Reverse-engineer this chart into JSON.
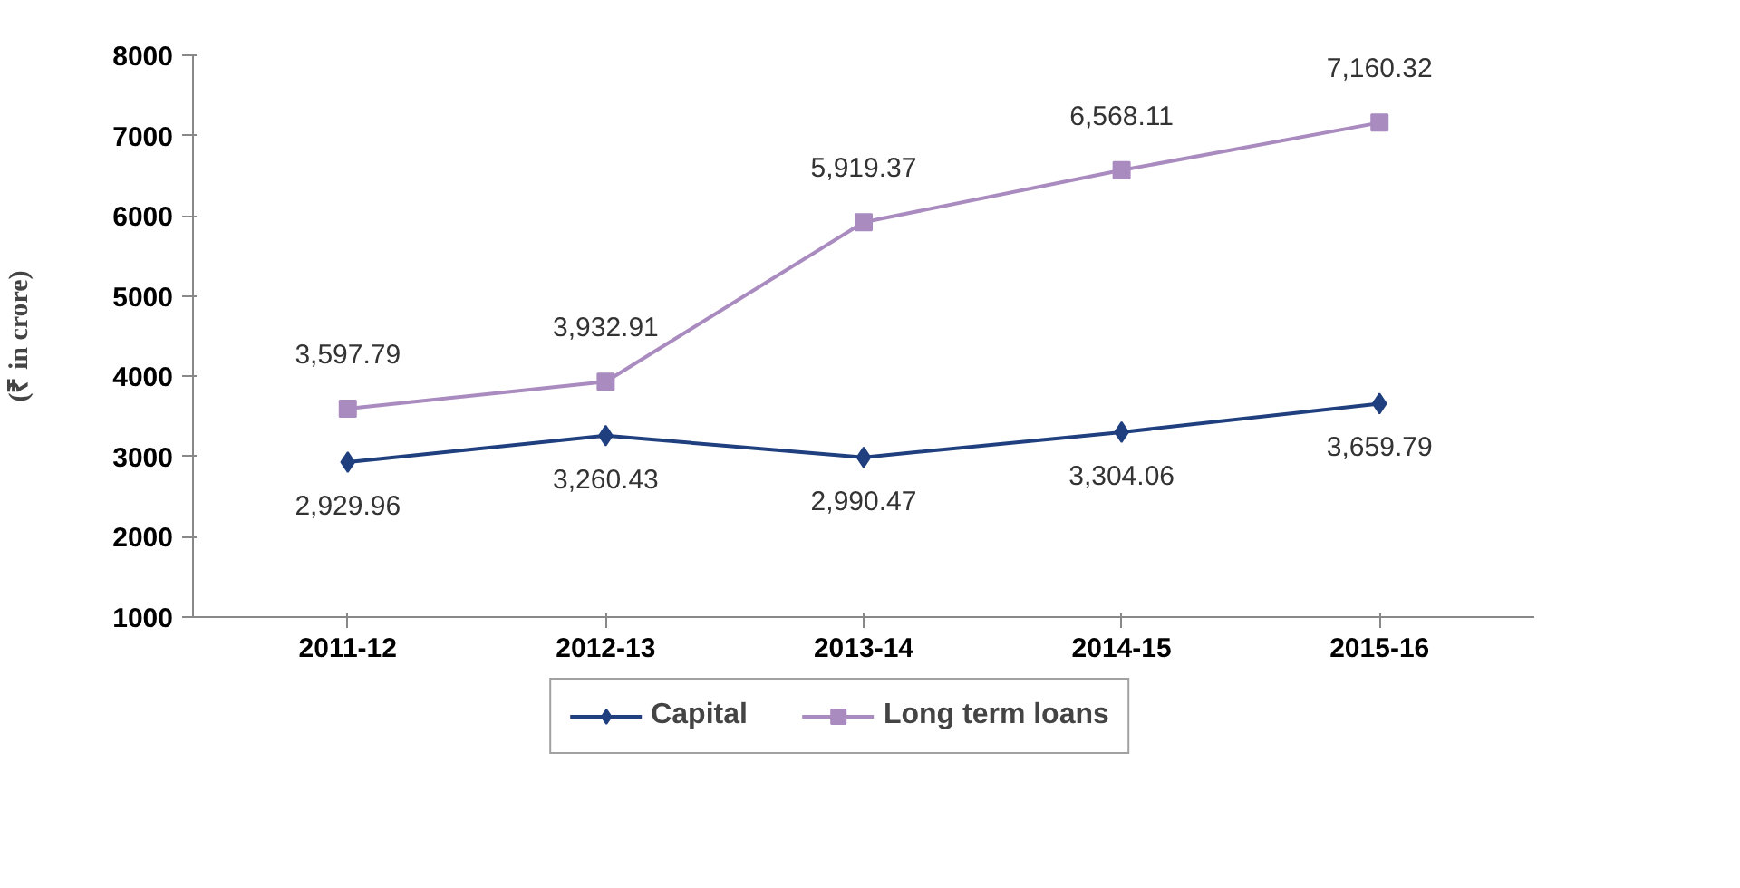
{
  "chart_data": {
    "type": "line",
    "ylabel": "(₹ in crore)",
    "categories": [
      "2011-12",
      "2012-13",
      "2013-14",
      "2014-15",
      "2015-16"
    ],
    "series": [
      {
        "name": "Capital",
        "color": "#1f3f7f",
        "marker": "diamond",
        "values": [
          2929.96,
          3260.43,
          2990.47,
          3304.06,
          3659.79
        ],
        "value_labels": [
          "2,929.96",
          "3,260.43",
          "2,990.47",
          "3,304.06",
          "3,659.79"
        ]
      },
      {
        "name": "Long term loans",
        "color": "#a98bc0",
        "marker": "square",
        "values": [
          3597.79,
          3932.91,
          5919.37,
          6568.11,
          7160.32
        ],
        "value_labels": [
          "3,597.79",
          "3,932.91",
          "5,919.37",
          "6,568.11",
          "7,160.32"
        ]
      }
    ],
    "ylim": [
      1000,
      8000
    ],
    "yticks": [
      1000,
      2000,
      3000,
      4000,
      5000,
      6000,
      7000,
      8000
    ],
    "grid": false,
    "legend": "bottom",
    "line_style": "solid"
  }
}
